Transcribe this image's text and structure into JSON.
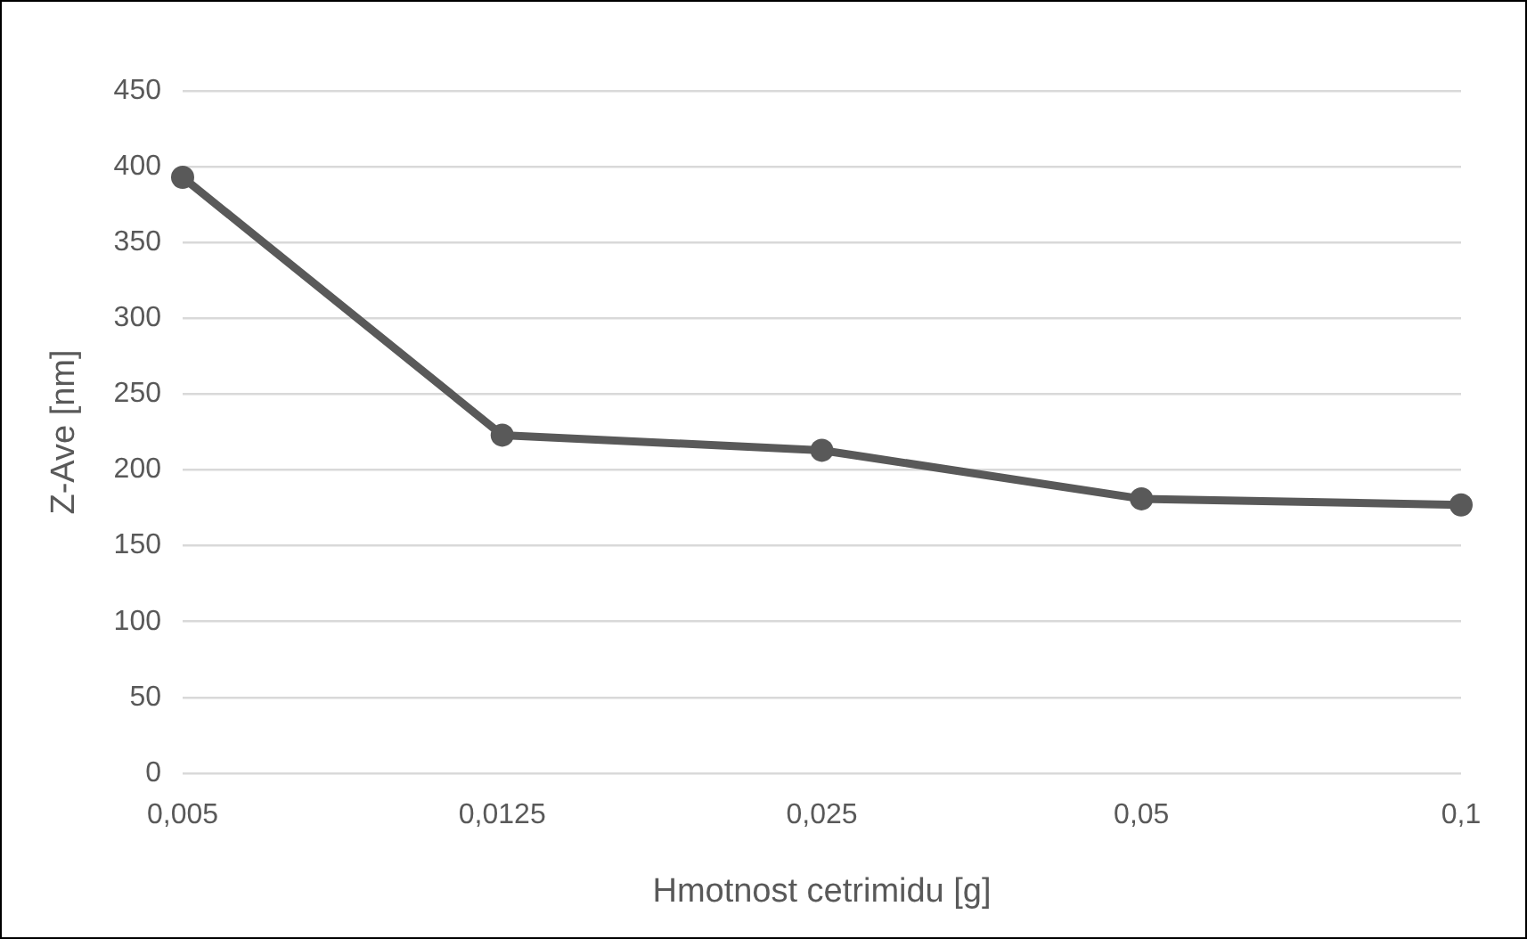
{
  "chart_data": {
    "type": "line",
    "xlabel": "Hmotnost cetrimidu [g]",
    "ylabel": "Z-Ave [nm]",
    "categories": [
      "0,005",
      "0,0125",
      "0,025",
      "0,05",
      "0,1"
    ],
    "series": [
      {
        "color": "#595959",
        "values": [
          393,
          223,
          213,
          181,
          177
        ]
      }
    ],
    "ylim": [
      0,
      450
    ],
    "yticks": [
      0,
      50,
      100,
      150,
      200,
      250,
      300,
      350,
      400,
      450
    ],
    "grid": "y",
    "legend": false,
    "marker": "circle",
    "line_style": "solid"
  }
}
